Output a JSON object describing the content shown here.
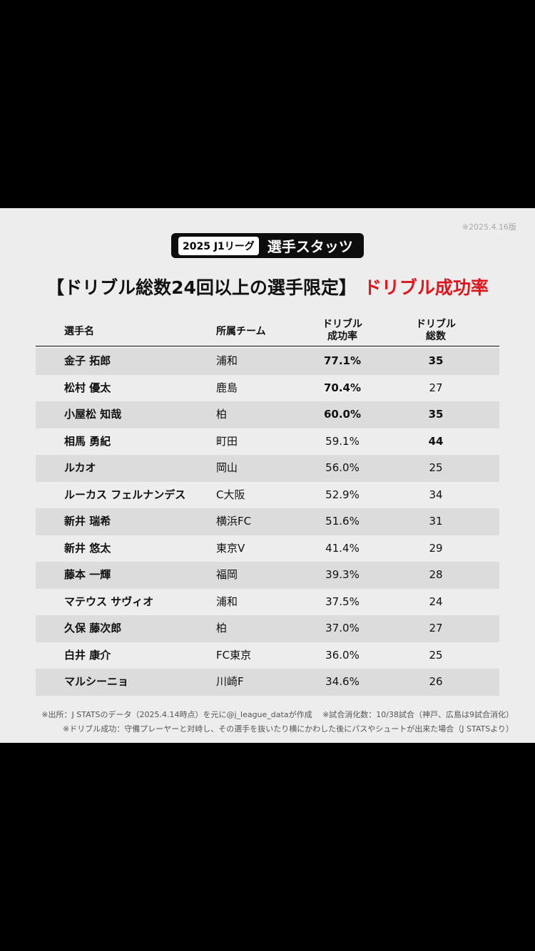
{
  "date_note": "※2025.4.16版",
  "badge": {
    "tag": "2025 J1リーグ",
    "title": "選手スタッツ"
  },
  "headline": {
    "prefix": "【ドリブル総数24回以上の選手限定】",
    "highlight": "ドリブル成功率"
  },
  "headers": {
    "name": "選手名",
    "team": "所属チーム",
    "rate_line1": "ドリブル",
    "rate_line2": "成功率",
    "total_line1": "ドリブル",
    "total_line2": "総数"
  },
  "rows": [
    {
      "name": "金子 拓郎",
      "team": "浦和",
      "rate": "77.1%",
      "total": "35",
      "rate_bold": true,
      "total_bold": true
    },
    {
      "name": "松村 優太",
      "team": "鹿島",
      "rate": "70.4%",
      "total": "27",
      "rate_bold": true,
      "total_bold": false
    },
    {
      "name": "小屋松 知哉",
      "team": "柏",
      "rate": "60.0%",
      "total": "35",
      "rate_bold": true,
      "total_bold": true
    },
    {
      "name": "相馬 勇紀",
      "team": "町田",
      "rate": "59.1%",
      "total": "44",
      "rate_bold": false,
      "total_bold": true
    },
    {
      "name": "ルカオ",
      "team": "岡山",
      "rate": "56.0%",
      "total": "25",
      "rate_bold": false,
      "total_bold": false
    },
    {
      "name": "ルーカス フェルナンデス",
      "team": "C大阪",
      "rate": "52.9%",
      "total": "34",
      "rate_bold": false,
      "total_bold": false
    },
    {
      "name": "新井 瑞希",
      "team": "横浜FC",
      "rate": "51.6%",
      "total": "31",
      "rate_bold": false,
      "total_bold": false
    },
    {
      "name": "新井 悠太",
      "team": "東京V",
      "rate": "41.4%",
      "total": "29",
      "rate_bold": false,
      "total_bold": false
    },
    {
      "name": "藤本 一輝",
      "team": "福岡",
      "rate": "39.3%",
      "total": "28",
      "rate_bold": false,
      "total_bold": false
    },
    {
      "name": "マテウス サヴィオ",
      "team": "浦和",
      "rate": "37.5%",
      "total": "24",
      "rate_bold": false,
      "total_bold": false
    },
    {
      "name": "久保 藤次郎",
      "team": "柏",
      "rate": "37.0%",
      "total": "27",
      "rate_bold": false,
      "total_bold": false
    },
    {
      "name": "白井 康介",
      "team": "FC東京",
      "rate": "36.0%",
      "total": "25",
      "rate_bold": false,
      "total_bold": false
    },
    {
      "name": "マルシーニョ",
      "team": "川崎F",
      "rate": "34.6%",
      "total": "26",
      "rate_bold": false,
      "total_bold": false
    }
  ],
  "footnotes": {
    "line1": "※出所：J STATSのデータ（2025.4.14時点）を元に@j_league_dataが作成　 ※試合消化数：10/38試合（神戸、広島は9試合消化）",
    "line2": "※ドリブル成功：守備プレーヤーと対峙し、その選手を抜いたり横にかわした後にパスやシュートが出来た場合（J STATSより）"
  },
  "colors": {
    "highlight_red": "#e2141b",
    "row_shade": "#dcdcdc",
    "card_bg": "#ededed"
  }
}
